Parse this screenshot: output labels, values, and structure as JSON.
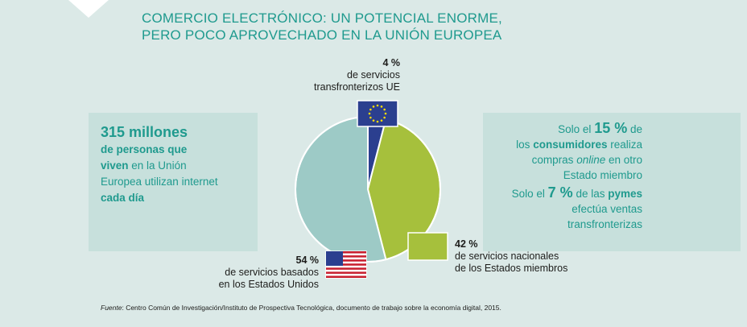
{
  "title": [
    "COMERCIO ELECTRÓNICO: UN POTENCIAL ENORME,",
    "PERO POCO APROVECHADO EN LA UNIÓN EUROPEA"
  ],
  "colors": {
    "accent": "#1f9a8e",
    "eu": "#2b3f8f",
    "national": "#a6c03c",
    "us": "#9dcac6",
    "background": "#dbe9e7"
  },
  "left_panel": {
    "big": "315 millones",
    "line1_bold": "de personas que",
    "line2_bold": "viven",
    "line2_rest": " en la Unión",
    "line3": "Europea utilizan internet",
    "line4_bold": "cada día"
  },
  "right_panel": {
    "s1_pre": "Solo el ",
    "s1_pct": "15 %",
    "s1_post": " de",
    "s1_l2_pre": "los ",
    "s1_l2_bold": "consumidores",
    "s1_l2_post": " realiza",
    "s1_l3_pre": "compras ",
    "s1_l3_em": "online",
    "s1_l3_post": " en otro",
    "s1_l4": "Estado miembro",
    "s2_pre": "Solo el ",
    "s2_pct": "7 %",
    "s2_mid": " de las ",
    "s2_bold": "pymes",
    "s2_l2": "efectúa ventas",
    "s2_l3": "transfronterizas"
  },
  "labels": {
    "eu": {
      "pct": "4 %",
      "l1": "de servicios",
      "l2": "transfronterizos UE"
    },
    "national": {
      "pct": "42 %",
      "l1": "de servicios nacionales",
      "l2": "de los Estados miembros"
    },
    "us": {
      "pct": "54 %",
      "l1": "de servicios basados",
      "l2": "en los Estados Unidos"
    }
  },
  "source": {
    "label": "Fuente",
    "text": ": Centro Común de Investigación/Instituto de Prospectiva Tecnológica, documento de trabajo sobre la economía digital, 2015."
  },
  "icons": [
    "eu-flag-icon",
    "us-flag-icon",
    "national-swatch-icon"
  ],
  "chart_data": {
    "type": "pie",
    "title": "COMERCIO ELECTRÓNICO: UN POTENCIAL ENORME, PERO POCO APROVECHADO EN LA UNIÓN EUROPEA",
    "categories": [
      "servicios transfronterizos UE",
      "servicios nacionales de los Estados miembros",
      "servicios basados en los Estados Unidos"
    ],
    "values": [
      4,
      42,
      54
    ],
    "unit": "%"
  }
}
